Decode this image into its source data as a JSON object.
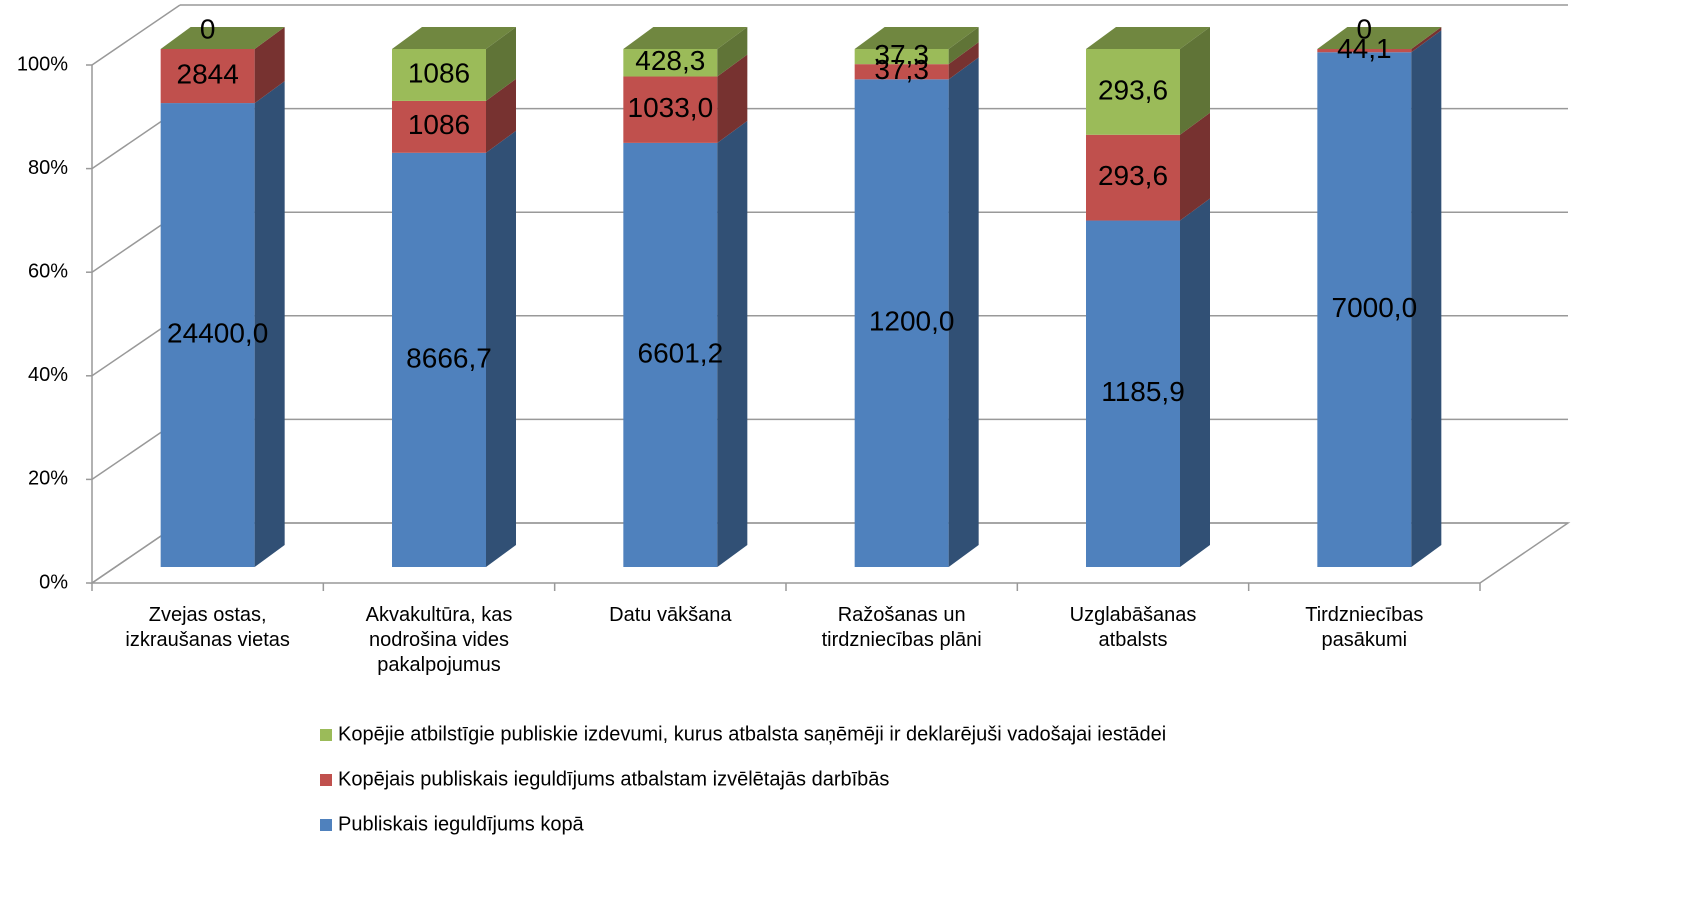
{
  "chart_data": {
    "type": "bar",
    "stacking": "percent",
    "categories": [
      "Zvejas ostas, izkraušanas vietas",
      "Akvakultūra, kas nodrošina vides pakalpojumus",
      "Datu vākšana",
      "Ražošanas un tirdzniecības plāni",
      "Uzglabāšanas atbalsts",
      "Tirdzniecības pasākumi"
    ],
    "series": [
      {
        "name": "Publiskais ieguldījums kopā",
        "color": "#4f81bd",
        "values": [
          24400,
          8666.7,
          6601.2,
          1200,
          1185.9,
          7000
        ],
        "value_labels": [
          "24400,0",
          "8666,7",
          "6601,2",
          "1200,0",
          "1185,9",
          "7000,0"
        ]
      },
      {
        "name": "Kopējais publiskais ieguldījums atbalstam izvēlētajās darbībās",
        "color": "#c0504d",
        "values": [
          2844,
          1086,
          1033,
          37.3,
          293.6,
          44.1
        ],
        "value_labels": [
          "2844",
          "1086",
          "1033,0",
          "37,3",
          "293,6",
          "44,1"
        ]
      },
      {
        "name": "Kopējie atbilstīgie publiskie izdevumi, kurus atbalsta saņēmēji ir deklarējuši vadošajai iestādei",
        "color": "#9bbb59",
        "values": [
          0,
          1086,
          428.3,
          37.3,
          293.6,
          0
        ],
        "value_labels": [
          "0",
          "1086",
          "428,3",
          "37,3",
          "293,6",
          "0"
        ]
      }
    ],
    "ylim": [
      0,
      100
    ],
    "yticks": [
      {
        "value": 0,
        "label": "0%"
      },
      {
        "value": 20,
        "label": "20%"
      },
      {
        "value": 40,
        "label": "40%"
      },
      {
        "value": 60,
        "label": "60%"
      },
      {
        "value": 80,
        "label": "80%"
      },
      {
        "value": 100,
        "label": "100%"
      }
    ],
    "grid": true,
    "legend": "bottom"
  }
}
